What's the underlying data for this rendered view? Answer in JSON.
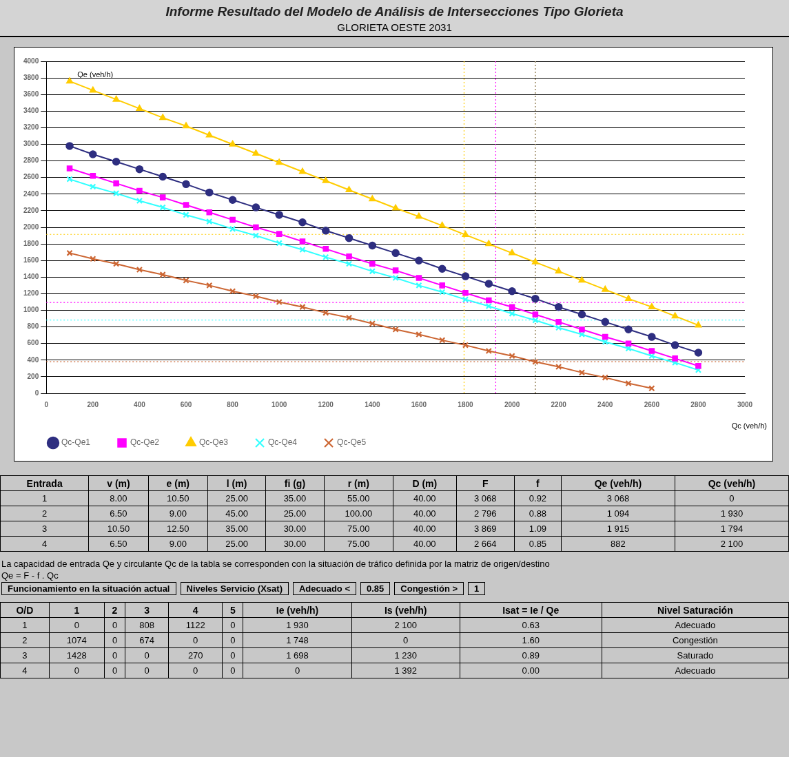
{
  "chart_data": {
    "type": "line",
    "title": "Informe Resultado del Modelo de Análisis de Intersecciones Tipo Glorieta",
    "subtitle": "GLORIETA OESTE 2031",
    "xlabel": "Qc (veh/h)",
    "ylabel": "Qe (veh/h)",
    "x": [
      100,
      200,
      300,
      400,
      500,
      600,
      700,
      800,
      900,
      1000,
      1100,
      1200,
      1300,
      1400,
      1500,
      1600,
      1700,
      1800,
      1900,
      2000,
      2100,
      2200,
      2300,
      2400,
      2500,
      2600,
      2700,
      2800
    ],
    "series": [
      {
        "name": "Qc-Qe1",
        "color": "#2e2e80",
        "marker": "circle",
        "values": [
          2980,
          2880,
          2790,
          2700,
          2610,
          2520,
          2420,
          2330,
          2240,
          2150,
          2060,
          1960,
          1870,
          1780,
          1690,
          1600,
          1500,
          1410,
          1320,
          1230,
          1140,
          1040,
          950,
          860,
          770,
          680,
          580,
          490
        ]
      },
      {
        "name": "Qc-Qe2",
        "color": "#ff00ff",
        "marker": "square",
        "values": [
          2710,
          2620,
          2530,
          2440,
          2360,
          2270,
          2180,
          2090,
          2000,
          1920,
          1830,
          1740,
          1650,
          1560,
          1480,
          1390,
          1300,
          1210,
          1120,
          1040,
          950,
          860,
          770,
          680,
          600,
          510,
          420,
          330
        ]
      },
      {
        "name": "Qc-Qe3",
        "color": "#ffcc00",
        "marker": "triangle",
        "values": [
          3760,
          3650,
          3540,
          3430,
          3320,
          3220,
          3110,
          3000,
          2890,
          2780,
          2670,
          2560,
          2450,
          2340,
          2230,
          2130,
          2020,
          1910,
          1800,
          1690,
          1580,
          1470,
          1360,
          1250,
          1140,
          1040,
          930,
          820
        ]
      },
      {
        "name": "Qc-Qe4",
        "color": "#33ffff",
        "marker": "cross",
        "values": [
          2580,
          2490,
          2410,
          2320,
          2240,
          2150,
          2070,
          1980,
          1900,
          1810,
          1730,
          1640,
          1560,
          1470,
          1390,
          1300,
          1220,
          1130,
          1050,
          960,
          880,
          790,
          710,
          620,
          540,
          450,
          370,
          280
        ]
      },
      {
        "name": "Qc-Qe5",
        "color": "#cc6633",
        "marker": "cross",
        "values": [
          1690,
          1620,
          1560,
          1490,
          1430,
          1360,
          1300,
          1230,
          1170,
          1100,
          1040,
          970,
          910,
          840,
          770,
          710,
          640,
          580,
          510,
          450,
          380,
          320,
          250,
          190,
          120,
          60,
          null,
          null
        ]
      }
    ],
    "xlim": [
      0,
      3000
    ],
    "xticks": [
      0,
      200,
      400,
      600,
      800,
      1000,
      1200,
      1400,
      1600,
      1800,
      2000,
      2200,
      2400,
      2600,
      2800,
      3000
    ],
    "ylim": [
      0,
      4000
    ],
    "yticks": [
      0,
      200,
      400,
      600,
      800,
      1000,
      1200,
      1400,
      1600,
      1800,
      2000,
      2200,
      2400,
      2600,
      2800,
      3000,
      3200,
      3400,
      3600,
      3800,
      4000
    ],
    "grid": "y",
    "legend": "bottom",
    "line_style": "solid",
    "ref_lines": [
      {
        "axis": "y",
        "value": 1915,
        "color": "#ffcc00",
        "line_style": "dotted"
      },
      {
        "axis": "x",
        "value": 1794,
        "color": "#ffcc00",
        "line_style": "dotted"
      },
      {
        "axis": "y",
        "value": 1094,
        "color": "#ff00ff",
        "line_style": "dotted"
      },
      {
        "axis": "x",
        "value": 1930,
        "color": "#ff00ff",
        "line_style": "dotted"
      },
      {
        "axis": "y",
        "value": 882,
        "color": "#33ffff",
        "line_style": "dotted"
      },
      {
        "axis": "x",
        "value": 2100,
        "color": "#33ffff",
        "line_style": "dotted"
      },
      {
        "axis": "y",
        "value": 380,
        "color": "#cc6633",
        "line_style": "dotted"
      },
      {
        "axis": "x",
        "value": 2100,
        "color": "#cc6633",
        "line_style": "dotted"
      }
    ],
    "annotations": [
      "Entrada",
      "v (m)",
      "e (m)",
      "l (m)",
      "fi (g)",
      "r (m)",
      "D (m)",
      "F",
      "f",
      "Qe (veh/h)",
      "Qc (veh/h)",
      "1",
      "8.00",
      "10.50",
      "25.00",
      "35.00",
      "55.00",
      "40.00",
      "3 068",
      "0.92",
      "3 068",
      "0",
      "2",
      "6.50",
      "9.00",
      "45.00",
      "25.00",
      "100.00",
      "40.00",
      "2 796",
      "0.88",
      "1 094",
      "1 930",
      "3",
      "10.50",
      "12.50",
      "35.00",
      "30.00",
      "75.00",
      "40.00",
      "3 869",
      "1.09",
      "1 915",
      "1 794",
      "4",
      "6.50",
      "9.00",
      "25.00",
      "30.00",
      "75.00",
      "40.00",
      "2 664",
      "0.85",
      "882",
      "2 100",
      "La capacidad de entrada Qe y circulante Qc de la tabla se corresponden con la situación de tráfico definida por la matriz de origen/destino",
      "Qe = F - f . Qc",
      "Funcionamiento en la situación actual",
      "Niveles Servicio (Xsat)",
      "Adecuado <",
      "0.85",
      "Congestión >",
      "1",
      "O/D",
      "1",
      "2",
      "3",
      "4",
      "5",
      "Ie (veh/h)",
      "Is (veh/h)",
      "Isat = Ie / Qe",
      "Nivel Saturación",
      "1",
      "0",
      "0",
      "808",
      "1122",
      "0",
      "1 930",
      "2 100",
      "0.63",
      "Adecuado",
      "2",
      "1074",
      "0",
      "674",
      "0",
      "0",
      "1 748",
      "0",
      "1.60",
      "Congestión",
      "3",
      "1428",
      "0",
      "0",
      "270",
      "0",
      "1 698",
      "1 230",
      "0.89",
      "Saturado",
      "4",
      "0",
      "0",
      "0",
      "0",
      "0",
      "0",
      "1 392",
      "0.00",
      "Adecuado"
    ]
  }
}
